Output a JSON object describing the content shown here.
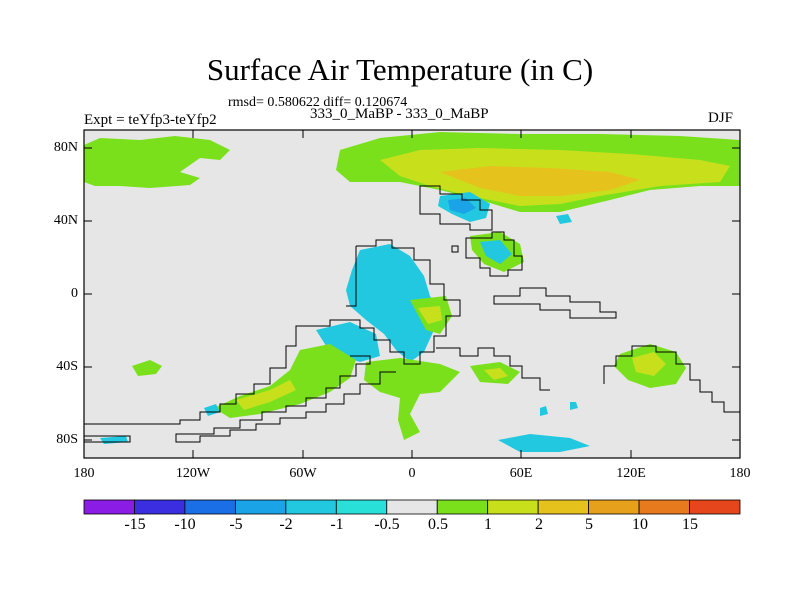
{
  "title": "Surface Air Temperature (in C)",
  "stats": "rmsd= 0.580622 diff= 0.120674",
  "case_label": "333_0_MaBP - 333_0_MaBP",
  "experiment_label": "Expt = teYfp3-teYfp2",
  "season": "DJF",
  "chart_data": {
    "type": "heatmap",
    "projection": "cylindrical equidistant",
    "x_range": [
      -180,
      180
    ],
    "y_range": [
      -90,
      90
    ],
    "y_ticks": [
      "80N",
      "40N",
      "0",
      "40S",
      "80S"
    ],
    "x_ticks": [
      "180",
      "120W",
      "60W",
      "0",
      "60E",
      "120E",
      "180"
    ],
    "colorbar": {
      "labels": [
        "-15",
        "-10",
        "-5",
        "-2",
        "-1",
        "-0.5",
        "0.5",
        "1",
        "2",
        "5",
        "10",
        "15"
      ],
      "colors": [
        "#8a1ce6",
        "#3a2ee0",
        "#1a6fe6",
        "#1aa3e6",
        "#22c8e0",
        "#28e0d8",
        "#e6e6e6",
        "#7ae01c",
        "#c8e01c",
        "#e6c21c",
        "#e6a01c",
        "#e67a1c",
        "#e6461c"
      ]
    },
    "background_value_color": "#e6e6e6",
    "anomaly_regions": [
      {
        "name": "arctic-band",
        "color": "#7ae01c",
        "lon": [
          -180,
          180
        ],
        "lat": [
          62,
          84
        ]
      },
      {
        "name": "north-yellow-band",
        "color": "#c8e01c",
        "lon": [
          -20,
          170
        ],
        "lat": [
          52,
          82
        ]
      },
      {
        "name": "north-orange-core",
        "color": "#e6c21c",
        "lon": [
          20,
          140
        ],
        "lat": [
          55,
          72
        ]
      },
      {
        "name": "north-america-cold",
        "color": "#22c8e0",
        "lon": [
          10,
          50
        ],
        "lat": [
          40,
          52
        ]
      },
      {
        "name": "tropical-cold",
        "color": "#22c8e0",
        "lon": [
          -40,
          20
        ],
        "lat": [
          -35,
          25
        ]
      },
      {
        "name": "southern-warm-patches",
        "color": "#7ae01c",
        "lon": [
          -120,
          130
        ],
        "lat": [
          -75,
          -35
        ]
      },
      {
        "name": "antarctic-cold",
        "color": "#22c8e0",
        "lon": [
          40,
          80
        ],
        "lat": [
          -88,
          -78
        ]
      }
    ]
  }
}
